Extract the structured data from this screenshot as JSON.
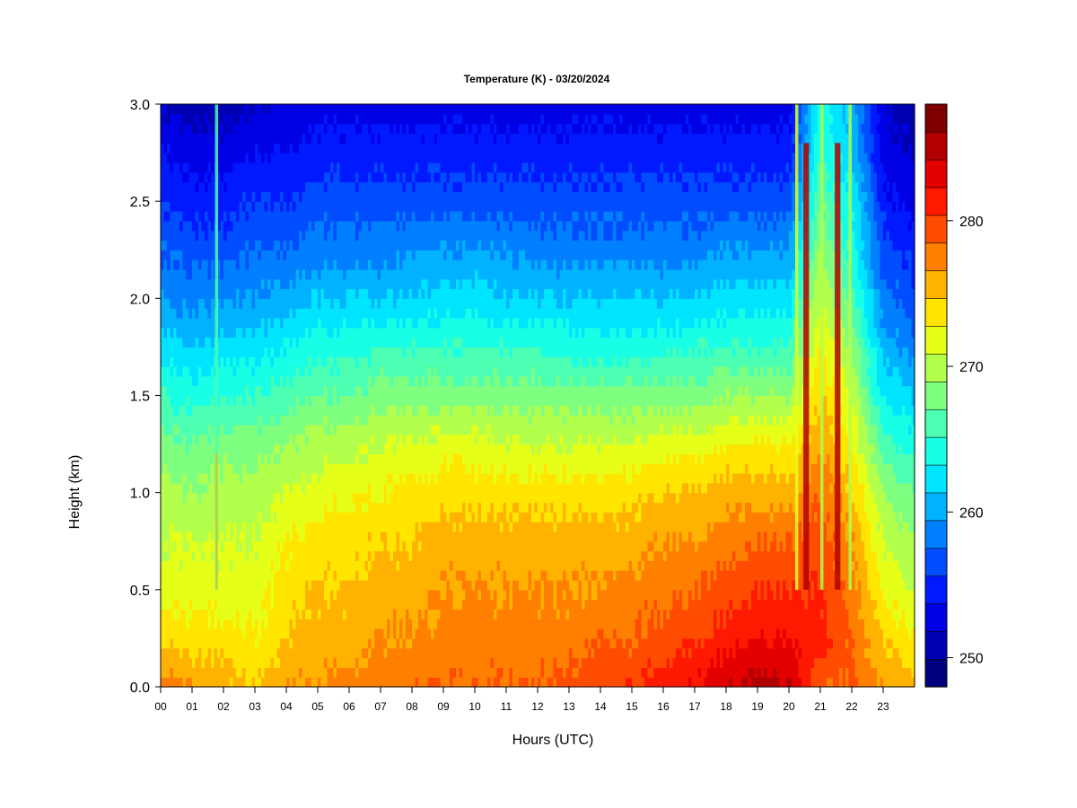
{
  "chart_data": {
    "type": "heatmap",
    "title": "Temperature (K) - 03/20/2024",
    "xlabel": "Hours (UTC)",
    "ylabel": "Height (km)",
    "xlim": [
      0,
      24
    ],
    "ylim": [
      0.0,
      3.0
    ],
    "x_ticks": [
      "00",
      "01",
      "02",
      "03",
      "04",
      "05",
      "06",
      "07",
      "08",
      "09",
      "10",
      "11",
      "12",
      "13",
      "14",
      "15",
      "16",
      "17",
      "18",
      "19",
      "20",
      "21",
      "22",
      "23"
    ],
    "y_ticks": [
      "0.0",
      "0.5",
      "1.0",
      "1.5",
      "2.0",
      "2.5",
      "3.0"
    ],
    "colorbar": {
      "range": [
        248,
        288
      ],
      "ticks": [
        "250",
        "260",
        "270",
        "280"
      ],
      "tick_values": [
        250,
        260,
        270,
        280
      ],
      "step": 2,
      "colors": [
        "#00007f",
        "#0000b2",
        "#0000e5",
        "#0019ff",
        "#004cff",
        "#007fff",
        "#00b2ff",
        "#00e5ff",
        "#19ffe5",
        "#4cffb2",
        "#7fff7f",
        "#b2ff4c",
        "#e5ff19",
        "#ffe500",
        "#ffb200",
        "#ff7f00",
        "#ff4c00",
        "#ff1900",
        "#e50000",
        "#b20000",
        "#7f0000"
      ]
    },
    "grid": false,
    "hours": [
      0,
      1,
      2,
      3,
      4,
      5,
      6,
      7,
      8,
      9,
      10,
      11,
      12,
      13,
      14,
      15,
      16,
      17,
      18,
      19,
      20,
      21,
      22,
      23,
      24
    ],
    "heights": [
      0.0,
      0.25,
      0.5,
      0.75,
      1.0,
      1.25,
      1.5,
      1.75,
      2.0,
      2.25,
      2.5,
      2.75,
      3.0
    ],
    "values": [
      [
        279,
        276,
        273,
        272,
        271,
        269,
        266,
        263,
        260,
        258,
        256,
        254,
        252
      ],
      [
        278,
        275,
        273,
        272,
        270,
        268,
        265,
        262,
        259,
        257,
        255,
        253,
        251
      ],
      [
        277,
        275,
        273,
        272,
        271,
        269,
        266,
        263,
        260,
        257,
        255,
        253,
        251
      ],
      [
        276,
        274,
        273,
        272,
        271,
        269,
        266,
        263,
        260,
        258,
        256,
        254,
        252
      ],
      [
        278,
        276,
        275,
        274,
        272,
        270,
        267,
        264,
        261,
        258,
        256,
        254,
        252
      ],
      [
        278,
        277,
        276,
        275,
        273,
        271,
        268,
        265,
        262,
        259,
        257,
        255,
        253
      ],
      [
        279,
        277,
        276,
        275,
        274,
        271,
        268,
        265,
        262,
        259,
        257,
        255,
        253
      ],
      [
        279,
        278,
        277,
        276,
        274,
        272,
        269,
        266,
        262,
        259,
        257,
        255,
        253
      ],
      [
        280,
        278,
        277,
        276,
        275,
        272,
        269,
        266,
        262,
        260,
        257,
        255,
        253
      ],
      [
        280,
        279,
        278,
        277,
        275,
        273,
        269,
        266,
        263,
        260,
        257,
        255,
        253
      ],
      [
        280,
        279,
        278,
        277,
        275,
        273,
        269,
        266,
        263,
        260,
        257,
        255,
        253
      ],
      [
        280,
        279,
        278,
        277,
        275,
        272,
        269,
        266,
        262,
        260,
        257,
        255,
        253
      ],
      [
        280,
        279,
        278,
        277,
        275,
        272,
        269,
        266,
        262,
        259,
        257,
        255,
        253
      ],
      [
        281,
        279,
        278,
        277,
        275,
        272,
        269,
        265,
        262,
        259,
        257,
        255,
        253
      ],
      [
        281,
        280,
        278,
        277,
        275,
        272,
        269,
        265,
        262,
        259,
        257,
        255,
        253
      ],
      [
        282,
        280,
        279,
        277,
        275,
        272,
        269,
        265,
        262,
        259,
        257,
        255,
        253
      ],
      [
        283,
        281,
        279,
        278,
        276,
        273,
        269,
        265,
        262,
        259,
        257,
        255,
        253
      ],
      [
        284,
        282,
        280,
        278,
        276,
        273,
        269,
        266,
        262,
        259,
        257,
        255,
        253
      ],
      [
        286,
        283,
        281,
        279,
        277,
        274,
        270,
        266,
        263,
        260,
        257,
        255,
        253
      ],
      [
        287,
        284,
        282,
        280,
        277,
        274,
        270,
        266,
        263,
        260,
        257,
        255,
        253
      ],
      [
        286,
        284,
        282,
        280,
        277,
        274,
        270,
        266,
        263,
        260,
        257,
        255,
        253
      ],
      [
        280,
        283,
        282,
        281,
        280,
        278,
        276,
        274,
        272,
        270,
        268,
        266,
        265
      ],
      [
        280,
        280,
        279,
        278,
        276,
        274,
        272,
        270,
        267,
        265,
        264,
        262,
        261
      ],
      [
        278,
        276,
        274,
        272,
        270,
        267,
        264,
        261,
        259,
        257,
        255,
        253,
        252
      ],
      [
        276,
        274,
        272,
        270,
        268,
        265,
        262,
        259,
        257,
        255,
        253,
        252,
        251
      ]
    ]
  }
}
